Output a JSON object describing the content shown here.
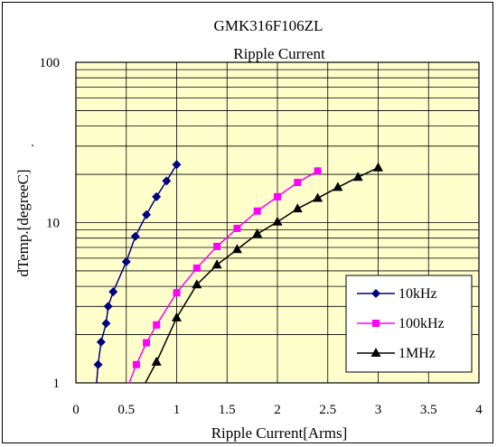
{
  "chart_data": {
    "type": "scatter",
    "title": "GMK316F106ZL",
    "subtitle": "Ripple Current",
    "xlabel": "Ripple Current[Arms]",
    "ylabel": "dTemp.[degreeC]",
    "ylabel_suffix": ".",
    "xlim": [
      0,
      4
    ],
    "ylim": [
      1,
      100
    ],
    "yscale": "log",
    "grid": true,
    "legend_position": "bottom-right",
    "x_ticks": [
      "0",
      "0.5",
      "1",
      "1.5",
      "2",
      "2.5",
      "3",
      "3.5",
      "4"
    ],
    "y_ticks": [
      "1",
      "10",
      "100"
    ],
    "plot_background": "#ffffcc",
    "series": [
      {
        "name": "10kHz",
        "color": "#000080",
        "marker": "diamond",
        "points": [
          [
            0.2,
            0.9
          ],
          [
            0.22,
            1.3
          ],
          [
            0.25,
            1.8
          ],
          [
            0.3,
            2.35
          ],
          [
            0.32,
            3.0
          ],
          [
            0.37,
            3.7
          ],
          [
            0.5,
            5.7
          ],
          [
            0.59,
            8.2
          ],
          [
            0.7,
            11.2
          ],
          [
            0.8,
            14.5
          ],
          [
            0.9,
            18.2
          ],
          [
            1.0,
            23.0
          ]
        ]
      },
      {
        "name": "100kHz",
        "color": "#ff00ff",
        "marker": "square",
        "points": [
          [
            0.5,
            0.9
          ],
          [
            0.6,
            1.3
          ],
          [
            0.7,
            1.78
          ],
          [
            0.8,
            2.3
          ],
          [
            1.0,
            3.65
          ],
          [
            1.2,
            5.2
          ],
          [
            1.4,
            7.1
          ],
          [
            1.6,
            9.2
          ],
          [
            1.8,
            11.8
          ],
          [
            2.0,
            14.5
          ],
          [
            2.2,
            17.8
          ],
          [
            2.4,
            21.0
          ]
        ]
      },
      {
        "name": "1MHz",
        "color": "#000000",
        "marker": "triangle",
        "points": [
          [
            0.65,
            0.9
          ],
          [
            0.8,
            1.35
          ],
          [
            1.0,
            2.55
          ],
          [
            1.2,
            4.1
          ],
          [
            1.4,
            5.45
          ],
          [
            1.6,
            6.8
          ],
          [
            1.8,
            8.5
          ],
          [
            2.0,
            10.1
          ],
          [
            2.2,
            12.2
          ],
          [
            2.4,
            14.2
          ],
          [
            2.6,
            16.6
          ],
          [
            2.8,
            19.2
          ],
          [
            3.0,
            22.0
          ]
        ]
      }
    ]
  }
}
